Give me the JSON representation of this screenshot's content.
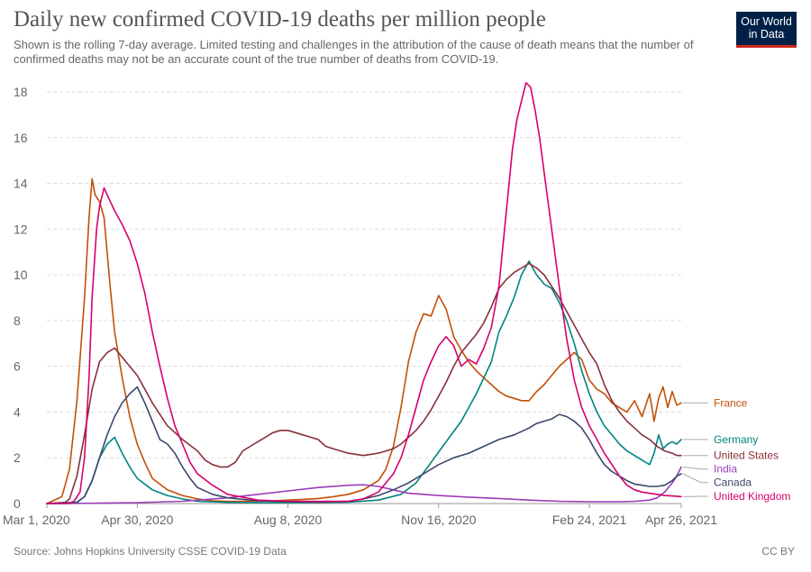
{
  "header": {
    "title": "Daily new confirmed COVID-19 deaths per million people",
    "subtitle": "Shown is the rolling 7-day average. Limited testing and challenges in the attribution of the cause of death means that the number of confirmed deaths may not be an accurate count of the true number of deaths from COVID-19.",
    "logo_line1": "Our World",
    "logo_line2": "in Data"
  },
  "footer": {
    "source": "Source: Johns Hopkins University CSSE COVID-19 Data",
    "license": "CC BY"
  },
  "colors": {
    "background": "#ffffff",
    "grid": "#dddddd",
    "logo_bg": "#002147",
    "logo_accent": "#ce261e"
  },
  "chart_data": {
    "type": "line",
    "title": "Daily new confirmed COVID-19 deaths per million people",
    "xlabel": "",
    "ylabel": "",
    "x_unit": "days since Mar 1, 2020",
    "xlim": [
      0,
      421
    ],
    "ylim": [
      0,
      18
    ],
    "y_ticks": [
      0,
      2,
      4,
      6,
      8,
      10,
      12,
      14,
      16,
      18
    ],
    "x_ticks": [
      {
        "x": 0,
        "label": "Mar 1, 2020"
      },
      {
        "x": 60,
        "label": "Apr 30, 2020"
      },
      {
        "x": 160,
        "label": "Aug 8, 2020"
      },
      {
        "x": 260,
        "label": "Nov 16, 2020"
      },
      {
        "x": 360,
        "label": "Feb 24, 2021"
      },
      {
        "x": 421,
        "label": "Apr 26, 2021"
      }
    ],
    "grid": true,
    "legend_position": "right",
    "series": [
      {
        "name": "France",
        "color": "#c15005",
        "x": [
          0,
          10,
          15,
          20,
          25,
          28,
          30,
          32,
          35,
          38,
          42,
          45,
          50,
          55,
          60,
          65,
          70,
          80,
          90,
          100,
          110,
          120,
          130,
          140,
          150,
          160,
          170,
          180,
          190,
          200,
          210,
          215,
          220,
          225,
          230,
          235,
          240,
          245,
          250,
          255,
          260,
          265,
          270,
          275,
          280,
          285,
          290,
          295,
          300,
          305,
          310,
          315,
          320,
          325,
          330,
          335,
          340,
          345,
          350,
          355,
          360,
          365,
          370,
          375,
          380,
          385,
          390,
          395,
          400,
          403,
          406,
          409,
          412,
          415,
          418,
          421
        ],
        "y": [
          0,
          0.3,
          1.5,
          4.5,
          9,
          12.5,
          14.2,
          13.5,
          13.2,
          12.5,
          9.5,
          7.5,
          5.5,
          3.8,
          2.6,
          1.8,
          1.1,
          0.6,
          0.35,
          0.2,
          0.12,
          0.1,
          0.1,
          0.1,
          0.12,
          0.15,
          0.18,
          0.22,
          0.3,
          0.4,
          0.6,
          0.8,
          1.0,
          1.5,
          2.5,
          4.2,
          6.2,
          7.5,
          8.3,
          8.2,
          9.1,
          8.5,
          7.3,
          6.7,
          6.2,
          5.8,
          5.5,
          5.2,
          4.9,
          4.7,
          4.6,
          4.5,
          4.5,
          4.9,
          5.2,
          5.6,
          6.0,
          6.3,
          6.6,
          6.3,
          5.4,
          5.0,
          4.8,
          4.4,
          4.2,
          4.0,
          4.5,
          3.8,
          4.8,
          3.6,
          4.6,
          5.1,
          4.2,
          4.9,
          4.3,
          4.4
        ]
      },
      {
        "name": "Germany",
        "color": "#00847e",
        "x": [
          0,
          15,
          20,
          25,
          30,
          35,
          40,
          45,
          50,
          55,
          60,
          70,
          80,
          90,
          100,
          120,
          140,
          160,
          180,
          200,
          220,
          235,
          245,
          255,
          265,
          275,
          285,
          295,
          300,
          305,
          310,
          315,
          320,
          325,
          330,
          335,
          340,
          345,
          350,
          355,
          360,
          365,
          370,
          375,
          380,
          385,
          390,
          395,
          400,
          403,
          406,
          409,
          412,
          415,
          418,
          421
        ],
        "y": [
          0,
          0,
          0.05,
          0.3,
          1.0,
          2.0,
          2.6,
          2.9,
          2.2,
          1.6,
          1.1,
          0.6,
          0.35,
          0.2,
          0.1,
          0.05,
          0.04,
          0.04,
          0.05,
          0.06,
          0.15,
          0.4,
          0.9,
          1.8,
          2.7,
          3.6,
          4.8,
          6.2,
          7.5,
          8.2,
          9.0,
          10.0,
          10.6,
          10.0,
          9.6,
          9.4,
          8.8,
          8.0,
          7.0,
          5.8,
          4.8,
          4.0,
          3.4,
          3.0,
          2.6,
          2.3,
          2.1,
          1.9,
          1.7,
          2.2,
          3.0,
          2.4,
          2.6,
          2.7,
          2.6,
          2.8
        ]
      },
      {
        "name": "United States",
        "color": "#883039",
        "x": [
          0,
          12,
          15,
          20,
          25,
          30,
          35,
          40,
          45,
          50,
          55,
          60,
          70,
          80,
          90,
          100,
          105,
          110,
          115,
          120,
          125,
          130,
          135,
          140,
          145,
          150,
          155,
          160,
          170,
          180,
          185,
          190,
          200,
          210,
          220,
          225,
          230,
          235,
          240,
          245,
          250,
          255,
          260,
          265,
          270,
          275,
          280,
          285,
          290,
          295,
          300,
          305,
          310,
          315,
          320,
          325,
          330,
          335,
          340,
          345,
          350,
          355,
          360,
          365,
          370,
          375,
          380,
          385,
          390,
          395,
          400,
          405,
          410,
          415,
          418,
          421
        ],
        "y": [
          0,
          0.05,
          0.2,
          1.2,
          3.0,
          5.0,
          6.2,
          6.6,
          6.8,
          6.4,
          6.0,
          5.6,
          4.4,
          3.4,
          2.8,
          2.3,
          1.9,
          1.7,
          1.6,
          1.6,
          1.8,
          2.3,
          2.5,
          2.7,
          2.9,
          3.1,
          3.2,
          3.2,
          3.0,
          2.8,
          2.5,
          2.4,
          2.2,
          2.1,
          2.2,
          2.3,
          2.4,
          2.6,
          2.9,
          3.2,
          3.6,
          4.1,
          4.7,
          5.3,
          6.0,
          6.6,
          7.0,
          7.4,
          7.9,
          8.6,
          9.4,
          9.8,
          10.1,
          10.3,
          10.5,
          10.3,
          10.0,
          9.5,
          9.0,
          8.4,
          7.8,
          7.2,
          6.6,
          6.1,
          5.2,
          4.5,
          4.0,
          3.6,
          3.3,
          3.0,
          2.8,
          2.5,
          2.3,
          2.2,
          2.1,
          2.1
        ]
      },
      {
        "name": "India",
        "color": "#9a3cb8",
        "x": [
          0,
          30,
          60,
          90,
          120,
          140,
          160,
          180,
          200,
          210,
          220,
          230,
          240,
          260,
          280,
          300,
          320,
          340,
          360,
          380,
          390,
          400,
          405,
          410,
          415,
          418,
          421
        ],
        "y": [
          0,
          0.01,
          0.04,
          0.1,
          0.25,
          0.4,
          0.55,
          0.7,
          0.8,
          0.82,
          0.75,
          0.6,
          0.45,
          0.35,
          0.28,
          0.22,
          0.15,
          0.1,
          0.08,
          0.08,
          0.1,
          0.15,
          0.25,
          0.5,
          0.9,
          1.2,
          1.6
        ]
      },
      {
        "name": "Canada",
        "color": "#38476b",
        "x": [
          0,
          20,
          25,
          30,
          35,
          40,
          45,
          50,
          55,
          60,
          65,
          70,
          75,
          80,
          85,
          90,
          95,
          100,
          110,
          120,
          140,
          160,
          180,
          200,
          210,
          220,
          230,
          240,
          250,
          260,
          270,
          280,
          290,
          300,
          310,
          320,
          325,
          330,
          335,
          340,
          345,
          350,
          355,
          360,
          365,
          370,
          375,
          380,
          385,
          390,
          395,
          400,
          405,
          410,
          415,
          418,
          421
        ],
        "y": [
          0,
          0.05,
          0.3,
          1.0,
          2.0,
          3.0,
          3.8,
          4.4,
          4.8,
          5.1,
          4.4,
          3.6,
          2.8,
          2.6,
          2.2,
          1.6,
          1.1,
          0.7,
          0.4,
          0.25,
          0.12,
          0.08,
          0.05,
          0.1,
          0.2,
          0.35,
          0.6,
          0.9,
          1.3,
          1.7,
          2.0,
          2.2,
          2.5,
          2.8,
          3.0,
          3.3,
          3.5,
          3.6,
          3.7,
          3.9,
          3.8,
          3.6,
          3.3,
          2.8,
          2.2,
          1.7,
          1.4,
          1.2,
          1.0,
          0.85,
          0.8,
          0.75,
          0.75,
          0.8,
          1.0,
          1.2,
          1.3
        ]
      },
      {
        "name": "United Kingdom",
        "color": "#d6006e",
        "x": [
          0,
          15,
          18,
          22,
          25,
          28,
          30,
          33,
          35,
          38,
          40,
          45,
          50,
          55,
          60,
          65,
          70,
          75,
          80,
          85,
          90,
          95,
          100,
          110,
          120,
          140,
          160,
          180,
          200,
          210,
          220,
          225,
          230,
          235,
          240,
          245,
          250,
          255,
          260,
          265,
          270,
          275,
          280,
          285,
          290,
          295,
          300,
          303,
          306,
          309,
          312,
          315,
          318,
          321,
          324,
          327,
          330,
          335,
          340,
          345,
          350,
          355,
          360,
          365,
          370,
          375,
          380,
          385,
          390,
          395,
          400,
          405,
          410,
          415,
          418,
          421
        ],
        "y": [
          0,
          0.01,
          0.1,
          0.5,
          2.0,
          5.5,
          9.0,
          12.0,
          13.0,
          13.8,
          13.5,
          12.8,
          12.2,
          11.5,
          10.5,
          9.2,
          7.5,
          6.0,
          4.6,
          3.4,
          2.6,
          1.8,
          1.3,
          0.8,
          0.4,
          0.15,
          0.1,
          0.1,
          0.1,
          0.2,
          0.5,
          0.9,
          1.3,
          2.0,
          3.0,
          4.2,
          5.4,
          6.2,
          6.9,
          7.3,
          6.9,
          6.0,
          6.3,
          6.1,
          6.8,
          7.7,
          9.5,
          11.5,
          13.5,
          15.5,
          16.8,
          17.6,
          18.4,
          18.2,
          17.2,
          16.0,
          14.5,
          12.0,
          9.5,
          7.2,
          5.4,
          4.2,
          3.4,
          2.8,
          2.2,
          1.7,
          1.2,
          0.8,
          0.6,
          0.5,
          0.45,
          0.4,
          0.35,
          0.33,
          0.32,
          0.3
        ]
      }
    ]
  }
}
